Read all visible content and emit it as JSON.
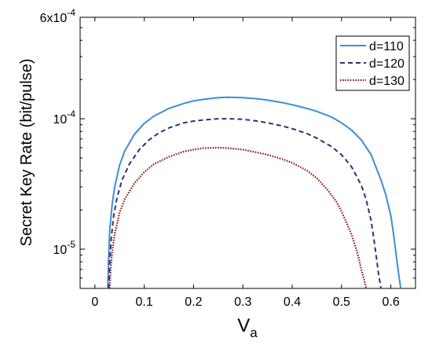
{
  "chart_data": {
    "type": "line",
    "title": "",
    "xlabel": "V",
    "xlabel_sub": "a",
    "ylabel": "Secret Key Rate (bit/pulse)",
    "xlim": [
      -0.03,
      0.65
    ],
    "ylim": [
      5e-06,
      0.0006
    ],
    "yscale": "log",
    "x_ticks": [
      0,
      0.1,
      0.2,
      0.3,
      0.4,
      0.5,
      0.6
    ],
    "x_tick_labels": [
      "0",
      "0.1",
      "0.2",
      "0.3",
      "0.4",
      "0.5",
      "0.6"
    ],
    "y_ticks": [
      1e-05,
      0.0001,
      0.0006
    ],
    "y_tick_labels": [
      {
        "base": "10",
        "exp": "-5"
      },
      {
        "base": "10",
        "exp": "-4"
      },
      {
        "base": "6x10",
        "exp": "-4"
      }
    ],
    "grid": false,
    "legend_position": "top-right",
    "series": [
      {
        "name": "d=110",
        "color": "#3a8fd6",
        "dash": "solid",
        "x": [
          0.026,
          0.028,
          0.03,
          0.035,
          0.04,
          0.05,
          0.06,
          0.08,
          0.1,
          0.12,
          0.15,
          0.18,
          0.2,
          0.22,
          0.25,
          0.27,
          0.3,
          0.33,
          0.35,
          0.38,
          0.4,
          0.43,
          0.45,
          0.48,
          0.5,
          0.52,
          0.54,
          0.56,
          0.58,
          0.59,
          0.6,
          0.605,
          0.61,
          0.615,
          0.62
        ],
        "y": [
          5e-06,
          9e-06,
          1.4e-05,
          2.2e-05,
          3e-05,
          4.4e-05,
          5.6e-05,
          7.6e-05,
          9.2e-05,
          0.000105,
          0.00012,
          0.000131,
          0.000137,
          0.000141,
          0.000145,
          0.000146,
          0.000145,
          0.000142,
          0.000139,
          0.000133,
          0.000128,
          0.00012,
          0.000114,
          0.000103,
          9.3e-05,
          8.2e-05,
          6.9e-05,
          5.3e-05,
          3.4e-05,
          2.6e-05,
          1.8e-05,
          1.35e-05,
          9.5e-06,
          6.8e-06,
          5e-06
        ]
      },
      {
        "name": "d=120",
        "color": "#3a2a78",
        "dash": "dashed",
        "x": [
          0.028,
          0.03,
          0.033,
          0.038,
          0.045,
          0.055,
          0.07,
          0.09,
          0.11,
          0.13,
          0.15,
          0.18,
          0.2,
          0.22,
          0.25,
          0.27,
          0.3,
          0.33,
          0.35,
          0.38,
          0.4,
          0.43,
          0.45,
          0.48,
          0.5,
          0.52,
          0.54,
          0.55,
          0.56,
          0.565,
          0.57,
          0.575,
          0.58
        ],
        "y": [
          5e-06,
          8e-06,
          1.2e-05,
          1.8e-05,
          2.5e-05,
          3.4e-05,
          4.5e-05,
          5.8e-05,
          6.9e-05,
          7.8e-05,
          8.5e-05,
          9.3e-05,
          9.6e-05,
          9.8e-05,
          0.0001,
          0.0001,
          9.9e-05,
          9.6e-05,
          9.3e-05,
          8.8e-05,
          8.4e-05,
          7.7e-05,
          7.1e-05,
          6.1e-05,
          5.3e-05,
          4.3e-05,
          3.1e-05,
          2.4e-05,
          1.65e-05,
          1.25e-05,
          9e-06,
          6.5e-06,
          5e-06
        ]
      },
      {
        "name": "d=130",
        "color": "#8b1a14",
        "dash": "dotted",
        "x": [
          0.03,
          0.032,
          0.035,
          0.04,
          0.05,
          0.06,
          0.08,
          0.1,
          0.12,
          0.15,
          0.18,
          0.2,
          0.22,
          0.25,
          0.27,
          0.3,
          0.33,
          0.35,
          0.38,
          0.4,
          0.43,
          0.45,
          0.47,
          0.49,
          0.5,
          0.51,
          0.52,
          0.53,
          0.535,
          0.54,
          0.545,
          0.55
        ],
        "y": [
          5e-06,
          7e-06,
          9.5e-06,
          1.3e-05,
          1.9e-05,
          2.4e-05,
          3.2e-05,
          3.9e-05,
          4.5e-05,
          5.1e-05,
          5.6e-05,
          5.8e-05,
          5.95e-05,
          6e-05,
          5.95e-05,
          5.8e-05,
          5.5e-05,
          5.3e-05,
          4.9e-05,
          4.6e-05,
          4e-05,
          3.5e-05,
          2.9e-05,
          2.3e-05,
          1.95e-05,
          1.6e-05,
          1.3e-05,
          1e-05,
          8.5e-06,
          7e-06,
          6e-06,
          5e-06
        ]
      }
    ]
  }
}
